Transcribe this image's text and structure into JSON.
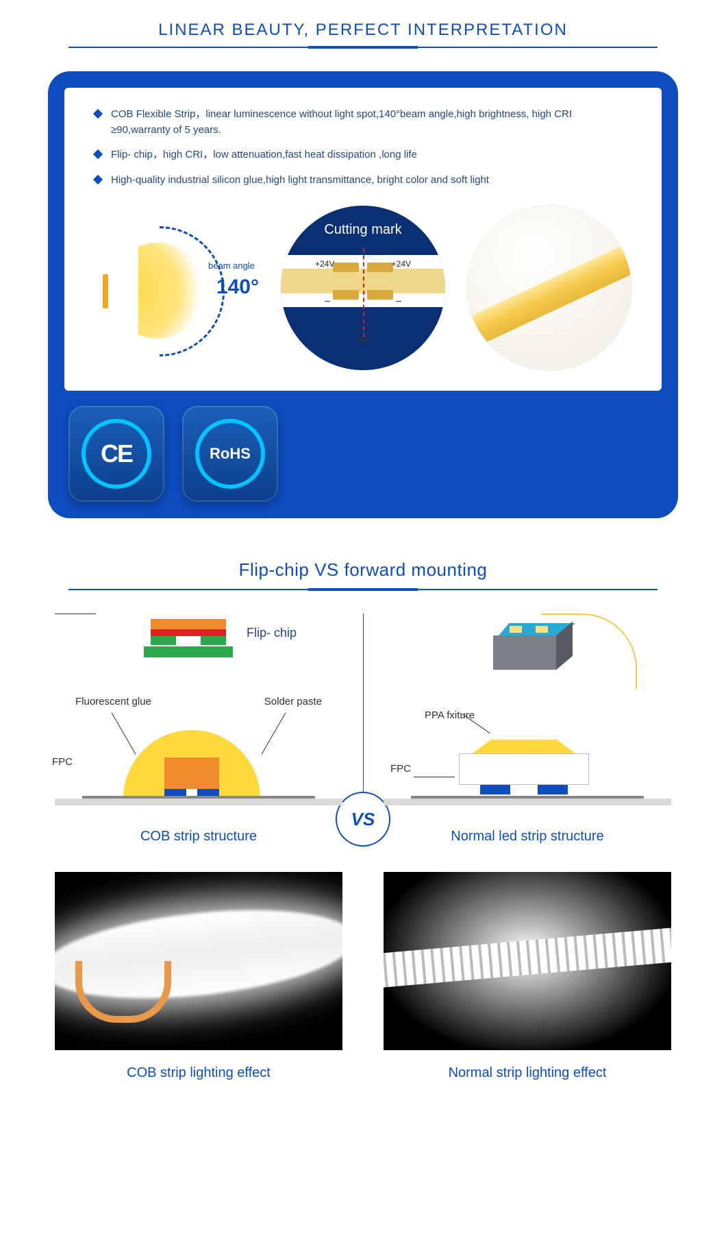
{
  "colors": {
    "primary": "#0d4dbf",
    "darkblue": "#0a2f75",
    "accent_cyan": "#00c4ff",
    "text_blue": "#25487f",
    "yellow": "#ffd93b",
    "amber": "#f5c94c",
    "orange": "#f08c2e",
    "red_dash": "#e02020",
    "gray_line": "#d9d9d9"
  },
  "section1": {
    "title": "LINEAR BEAUTY, PERFECT INTERPRETATION",
    "bullets": [
      "COB Flexible Strip，linear luminescence without light spot,140°beam angle,high brightness, high CRI ≥90,warranty of 5 years.",
      "Flip- chip，high CRI，low attenuation,fast heat dissipation ,long life",
      "High-quality industrial silicon glue,high light transmittance, bright color and soft light"
    ],
    "beam": {
      "label": "beam angle",
      "value": "140°"
    },
    "cutting": {
      "title": "Cutting mark",
      "voltage_left": "+24V",
      "voltage_right": "+24V",
      "neg_left": "–",
      "neg_right": "–"
    },
    "badges": {
      "ce": "CE",
      "rohs": "RoHS"
    }
  },
  "section2": {
    "title": "Flip-chip VS forward mounting",
    "vs": "VS",
    "left": {
      "top_label": "Flip- chip",
      "labels": {
        "fluorescent": "Fluorescent glue",
        "solder": "Solder paste",
        "fpc": "FPC"
      },
      "caption": "COB strip structure",
      "photo_caption": "COB strip lighting effect"
    },
    "right": {
      "labels": {
        "ppa": "PPA fxiture",
        "fpc": "FPC"
      },
      "caption": "Normal led strip structure",
      "photo_caption": "Normal strip lighting effect"
    }
  }
}
